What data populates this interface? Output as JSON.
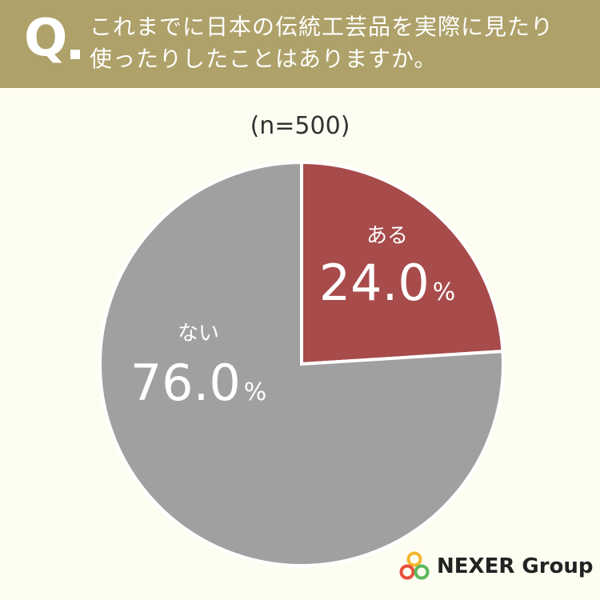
{
  "header": {
    "q_mark": "Q",
    "question_line1": "これまでに日本の伝統工芸品を実際に見たり",
    "question_line2": "使ったりしたことはありますか。"
  },
  "sample_size": "(n=500)",
  "brand": {
    "name": "NEXER Group",
    "colors": [
      "#e94e3c",
      "#f5b52e",
      "#5cb85c"
    ]
  },
  "colors": {
    "header_bg": "#aea169",
    "background": "#fdfdf1"
  },
  "chart_data": {
    "type": "pie",
    "slices": [
      {
        "label": "ある",
        "value": 24.0,
        "value_text": "24.0",
        "unit": "%",
        "color": "#a84b4b"
      },
      {
        "label": "ない",
        "value": 76.0,
        "value_text": "76.0",
        "unit": "%",
        "color": "#a0a0a0"
      }
    ]
  }
}
